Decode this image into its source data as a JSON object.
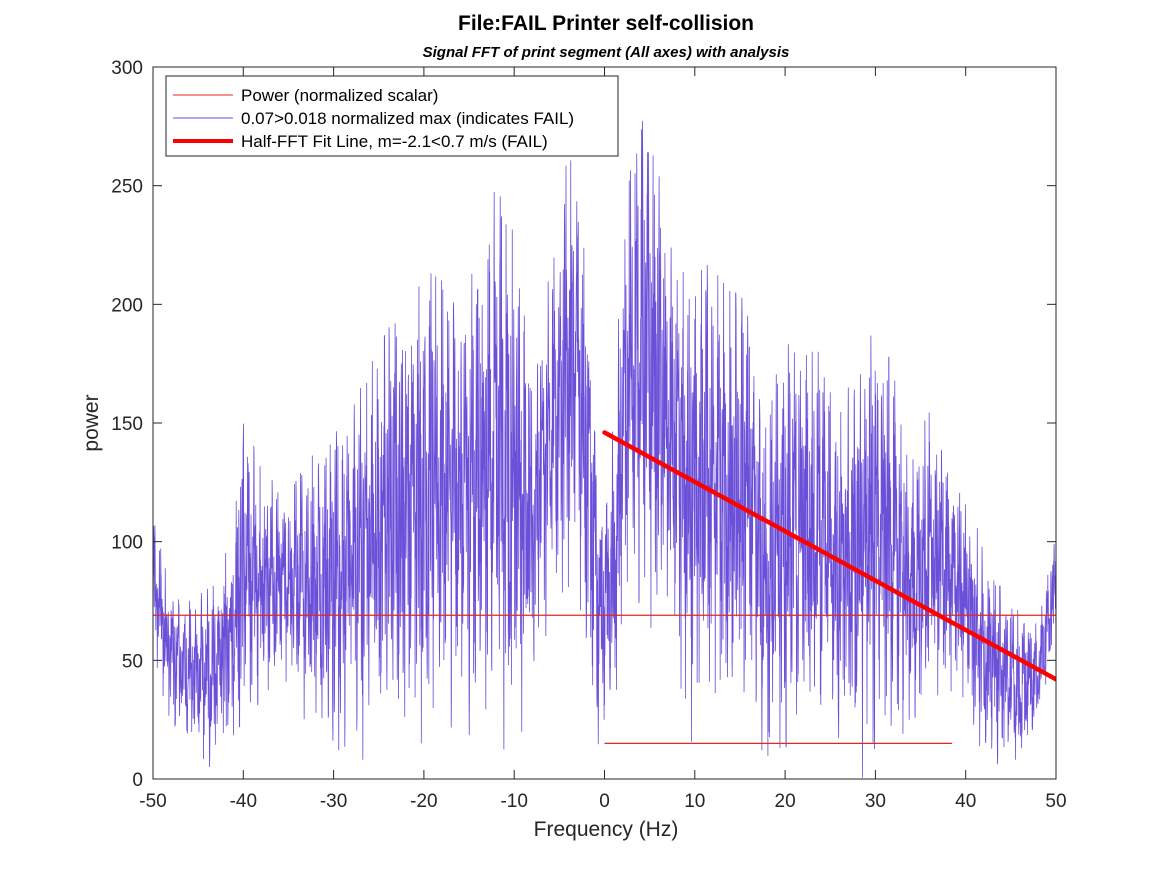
{
  "chart_data": {
    "type": "line",
    "title": "File:FAIL Printer self-collision",
    "subtitle": "Signal FFT of print segment (All axes) with analysis",
    "xlabel": "Frequency (Hz)",
    "ylabel": "power",
    "xlim": [
      -50,
      50
    ],
    "ylim": [
      0,
      300
    ],
    "xticks": [
      -50,
      -40,
      -30,
      -20,
      -10,
      0,
      10,
      20,
      30,
      40,
      50
    ],
    "yticks": [
      0,
      50,
      100,
      150,
      200,
      250,
      300
    ],
    "grid": false,
    "legend_position": "top-left",
    "colors": {
      "spectrum": "#6a4fd8",
      "power_line": "#e8251f",
      "fit_line": "#ff0000"
    },
    "series": [
      {
        "name": "Power (normalized scalar)",
        "kind": "hline",
        "y": 69
      },
      {
        "name": "0.07>0.018 normalized max (indicates FAIL)",
        "kind": "spectrum",
        "envelope_x": [
          -50,
          -48,
          -46,
          -44,
          -42,
          -40,
          -38,
          -35,
          -32,
          -30,
          -28,
          -26,
          -24,
          -22,
          -20,
          -18,
          -16,
          -14,
          -12,
          -10,
          -8,
          -6,
          -4,
          -3,
          -2,
          -1,
          0,
          1,
          2,
          3,
          4,
          6,
          8,
          10,
          12,
          14,
          16,
          18,
          20,
          22,
          24,
          26,
          28,
          30,
          32,
          34,
          36,
          38,
          40,
          42,
          44,
          46,
          48,
          50
        ],
        "envelope_max": [
          110,
          80,
          75,
          80,
          95,
          155,
          130,
          120,
          140,
          150,
          155,
          175,
          190,
          195,
          215,
          210,
          200,
          225,
          250,
          230,
          170,
          215,
          265,
          260,
          230,
          150,
          120,
          150,
          230,
          260,
          280,
          255,
          210,
          220,
          215,
          205,
          205,
          150,
          190,
          180,
          180,
          160,
          170,
          200,
          170,
          140,
          155,
          140,
          125,
          95,
          80,
          70,
          65,
          110
        ],
        "envelope_min": [
          55,
          25,
          15,
          5,
          10,
          25,
          35,
          40,
          30,
          15,
          30,
          20,
          35,
          35,
          30,
          40,
          35,
          30,
          40,
          20,
          50,
          70,
          90,
          90,
          60,
          20,
          15,
          20,
          60,
          90,
          90,
          70,
          50,
          20,
          40,
          30,
          35,
          15,
          15,
          35,
          30,
          20,
          15,
          20,
          30,
          15,
          35,
          40,
          30,
          15,
          10,
          5,
          25,
          55
        ]
      },
      {
        "name": "Half-FFT Fit Line, m=-2.1<0.7 m/s (FAIL)",
        "kind": "line",
        "x": [
          0,
          50
        ],
        "y": [
          146,
          42
        ]
      },
      {
        "name": "",
        "kind": "segment",
        "x": [
          0,
          38.5
        ],
        "y": [
          15,
          15
        ]
      }
    ]
  }
}
